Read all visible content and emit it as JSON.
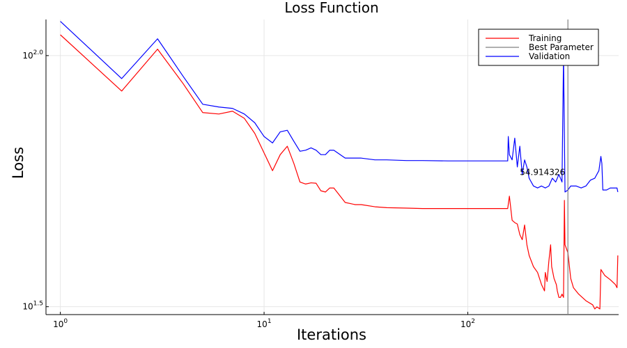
{
  "chart_data": {
    "type": "line",
    "title": "Loss Function",
    "xlabel": "Iterations",
    "ylabel": "Loss",
    "x_scale": "log10",
    "y_scale": "log10",
    "xlim": [
      0.85,
      550
    ],
    "ylim": [
      30.5,
      118
    ],
    "x_ticks": [
      {
        "value": 1,
        "base": "10",
        "exp": "0"
      },
      {
        "value": 10,
        "base": "10",
        "exp": "1"
      },
      {
        "value": 100,
        "base": "10",
        "exp": "2"
      }
    ],
    "y_ticks": [
      {
        "value": 31.6228,
        "base": "10",
        "exp": "1.5"
      },
      {
        "value": 100,
        "base": "10",
        "exp": "2.0"
      }
    ],
    "grid": true,
    "legend_position": "top-right",
    "annotation": {
      "text": "54.914326",
      "x": 290
    },
    "best_parameter_x": 310,
    "series": [
      {
        "name": "Training",
        "color": "#ff0000",
        "points": [
          [
            1,
            110
          ],
          [
            2,
            85
          ],
          [
            3,
            103
          ],
          [
            4,
            88
          ],
          [
            5,
            77
          ],
          [
            6,
            76.5
          ],
          [
            7,
            77.5
          ],
          [
            8,
            75
          ],
          [
            9,
            70
          ],
          [
            10,
            64
          ],
          [
            11,
            59
          ],
          [
            12,
            63.5
          ],
          [
            13,
            66
          ],
          [
            14,
            61
          ],
          [
            15,
            56
          ],
          [
            16,
            55.5
          ],
          [
            17,
            55.8
          ],
          [
            18,
            55.7
          ],
          [
            19,
            53.8
          ],
          [
            20,
            53.5
          ],
          [
            21,
            54.5
          ],
          [
            22,
            54.5
          ],
          [
            25,
            51
          ],
          [
            28,
            50.5
          ],
          [
            30,
            50.5
          ],
          [
            35,
            50
          ],
          [
            40,
            49.8
          ],
          [
            50,
            49.7
          ],
          [
            60,
            49.6
          ],
          [
            80,
            49.6
          ],
          [
            100,
            49.6
          ],
          [
            150,
            49.6
          ],
          [
            157,
            49.6
          ],
          [
            160,
            52.5
          ],
          [
            165,
            47
          ],
          [
            170,
            46.5
          ],
          [
            175,
            46.2
          ],
          [
            180,
            44
          ],
          [
            185,
            43
          ],
          [
            190,
            46
          ],
          [
            195,
            42
          ],
          [
            200,
            40
          ],
          [
            210,
            38
          ],
          [
            220,
            37
          ],
          [
            230,
            35
          ],
          [
            238,
            34
          ],
          [
            240,
            37
          ],
          [
            245,
            35.5
          ],
          [
            250,
            39
          ],
          [
            255,
            42
          ],
          [
            258,
            38
          ],
          [
            265,
            36
          ],
          [
            272,
            35
          ],
          [
            275,
            34
          ],
          [
            280,
            33
          ],
          [
            285,
            33
          ],
          [
            290,
            33.5
          ],
          [
            295,
            33
          ],
          [
            298,
            51.5
          ],
          [
            300,
            42
          ],
          [
            310,
            40.5
          ],
          [
            320,
            36
          ],
          [
            330,
            34.5
          ],
          [
            350,
            33.5
          ],
          [
            380,
            32.5
          ],
          [
            410,
            31.9
          ],
          [
            420,
            31.3
          ],
          [
            430,
            31.6
          ],
          [
            445,
            31.3
          ],
          [
            450,
            37.5
          ],
          [
            470,
            36.5
          ],
          [
            500,
            35.8
          ],
          [
            530,
            35
          ],
          [
            540,
            34.5
          ],
          [
            545,
            40
          ]
        ]
      },
      {
        "name": "Validation",
        "color": "#0000ff",
        "points": [
          [
            1,
            117
          ],
          [
            2,
            90
          ],
          [
            3,
            108
          ],
          [
            4,
            91
          ],
          [
            5,
            80
          ],
          [
            6,
            79
          ],
          [
            7,
            78.5
          ],
          [
            8,
            76.5
          ],
          [
            9,
            73.5
          ],
          [
            10,
            69
          ],
          [
            11,
            67
          ],
          [
            12,
            70.5
          ],
          [
            13,
            71
          ],
          [
            14,
            67.5
          ],
          [
            15,
            64.5
          ],
          [
            16,
            64.8
          ],
          [
            17,
            65.5
          ],
          [
            18,
            64.8
          ],
          [
            19,
            63.5
          ],
          [
            20,
            63.5
          ],
          [
            21,
            64.8
          ],
          [
            22,
            64.8
          ],
          [
            25,
            62.5
          ],
          [
            28,
            62.5
          ],
          [
            30,
            62.5
          ],
          [
            35,
            62
          ],
          [
            40,
            62
          ],
          [
            50,
            61.8
          ],
          [
            60,
            61.8
          ],
          [
            80,
            61.7
          ],
          [
            100,
            61.7
          ],
          [
            150,
            61.7
          ],
          [
            157,
            61.7
          ],
          [
            158,
            69
          ],
          [
            160,
            63.5
          ],
          [
            165,
            62
          ],
          [
            170,
            68.5
          ],
          [
            175,
            60
          ],
          [
            180,
            66
          ],
          [
            185,
            58
          ],
          [
            190,
            62
          ],
          [
            195,
            60
          ],
          [
            200,
            57
          ],
          [
            210,
            55
          ],
          [
            220,
            54.5
          ],
          [
            230,
            55
          ],
          [
            240,
            54.5
          ],
          [
            250,
            55
          ],
          [
            260,
            57
          ],
          [
            270,
            56
          ],
          [
            280,
            58
          ],
          [
            290,
            56
          ],
          [
            295,
            100
          ],
          [
            300,
            53.5
          ],
          [
            310,
            54
          ],
          [
            320,
            55
          ],
          [
            340,
            55
          ],
          [
            360,
            54.5
          ],
          [
            380,
            55
          ],
          [
            400,
            56.5
          ],
          [
            420,
            57
          ],
          [
            440,
            59
          ],
          [
            450,
            63
          ],
          [
            455,
            61
          ],
          [
            460,
            54
          ],
          [
            480,
            54
          ],
          [
            500,
            54.5
          ],
          [
            520,
            54.5
          ],
          [
            540,
            54.5
          ],
          [
            545,
            53.5
          ]
        ]
      }
    ],
    "legend_entries": [
      {
        "label": "Training",
        "color": "#ff0000"
      },
      {
        "label": "Best Parameter",
        "color": "#808080"
      },
      {
        "label": "Validation",
        "color": "#0000ff"
      }
    ]
  }
}
